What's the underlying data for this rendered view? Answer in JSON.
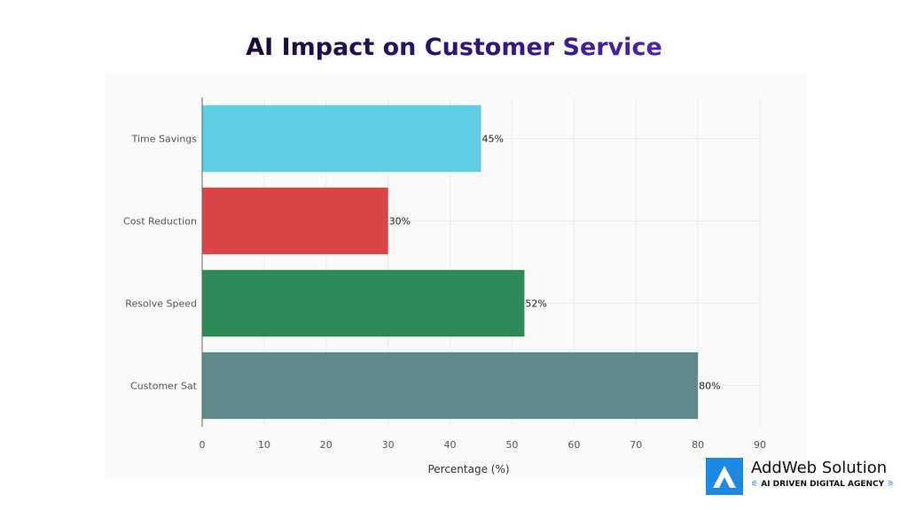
{
  "chart_data": {
    "type": "bar",
    "orientation": "horizontal",
    "title": "AI Impact on Customer Service",
    "categories": [
      "Time Savings",
      "Cost Reduction",
      "Resolve Speed",
      "Customer Sat"
    ],
    "values": [
      45,
      30,
      52,
      80
    ],
    "data_labels": [
      "45%",
      "30%",
      "52%",
      "80%"
    ],
    "colors": [
      "#5ecfe2",
      "#dc4545",
      "#2e8b57",
      "#5f8a8b"
    ],
    "xlabel": "Percentage (%)",
    "ylabel": "",
    "xlim": [
      0,
      90
    ],
    "xticks": [
      0,
      10,
      20,
      30,
      40,
      50,
      60,
      70,
      80,
      90
    ],
    "grid": true
  },
  "logo": {
    "brand": "AddWeb Solution",
    "tagline": "AI DRIVEN DIGITAL AGENCY"
  }
}
